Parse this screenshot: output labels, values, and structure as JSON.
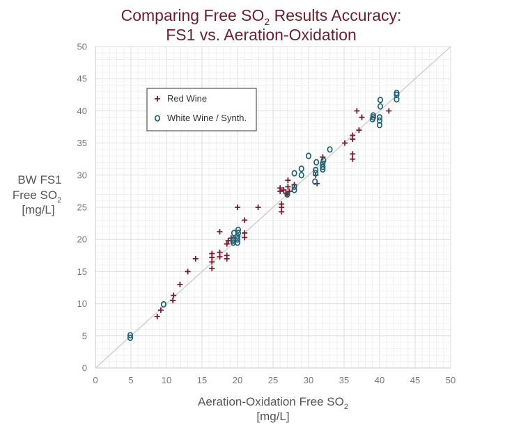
{
  "chart_data": {
    "type": "scatter",
    "title_line1": "Comparing Free SO",
    "title_sub": "2",
    "title_line1_end": " Results Accuracy:",
    "title_line2": "FS1 vs. Aeration-Oxidation",
    "xlabel_line1": "Aeration-Oxidation Free SO",
    "xlabel_sub": "2",
    "xlabel_line2": "[mg/L]",
    "ylabel_line1": "BW FS1",
    "ylabel_line2": "Free SO",
    "ylabel_sub": "2",
    "ylabel_line3": "[mg/L]",
    "xlim": [
      0,
      50
    ],
    "ylim": [
      0,
      50
    ],
    "xticks": [
      "0",
      "5",
      "10",
      "15",
      "20",
      "25",
      "30",
      "35",
      "40",
      "45",
      "50"
    ],
    "yticks": [
      "0",
      "5",
      "10",
      "15",
      "20",
      "25",
      "30",
      "35",
      "40",
      "45",
      "50"
    ],
    "grid": true,
    "reference_line": "y = x",
    "legend_position": "top-left",
    "colors": {
      "red": "#7a1a2c",
      "white": "#1f6073",
      "grid": "#e8e8e8",
      "ref": "#d0d0d0",
      "title": "#6b1e2e"
    },
    "series": [
      {
        "name": "Red Wine",
        "marker": "plus",
        "points": [
          [
            8.7,
            8.0
          ],
          [
            9.2,
            9.0
          ],
          [
            10.9,
            10.5
          ],
          [
            11.0,
            11.3
          ],
          [
            11.9,
            13.0
          ],
          [
            13.0,
            15.0
          ],
          [
            14.1,
            17.0
          ],
          [
            16.4,
            15.5
          ],
          [
            16.4,
            16.5
          ],
          [
            16.4,
            17.2
          ],
          [
            16.4,
            17.8
          ],
          [
            17.5,
            17.3
          ],
          [
            17.5,
            18.0
          ],
          [
            17.5,
            21.2
          ],
          [
            18.5,
            17.0
          ],
          [
            18.5,
            17.5
          ],
          [
            18.5,
            19.3
          ],
          [
            18.7,
            19.8
          ],
          [
            19.1,
            20.2
          ],
          [
            20.0,
            25.0
          ],
          [
            21.0,
            20.3
          ],
          [
            21.0,
            21.0
          ],
          [
            21.0,
            23.0
          ],
          [
            22.9,
            25.0
          ],
          [
            26.0,
            27.5
          ],
          [
            26.0,
            28.0
          ],
          [
            26.2,
            24.3
          ],
          [
            26.2,
            25.0
          ],
          [
            26.2,
            25.5
          ],
          [
            26.5,
            27.7
          ],
          [
            26.8,
            27.2
          ],
          [
            27.0,
            27.0
          ],
          [
            27.1,
            28.2
          ],
          [
            27.1,
            29.2
          ],
          [
            27.3,
            27.5
          ],
          [
            28.0,
            28.5
          ],
          [
            31.0,
            30.0
          ],
          [
            31.2,
            28.7
          ],
          [
            32.0,
            32.8
          ],
          [
            35.1,
            35.0
          ],
          [
            36.2,
            32.5
          ],
          [
            36.2,
            33.3
          ],
          [
            36.2,
            35.6
          ],
          [
            36.2,
            36.2
          ],
          [
            36.8,
            40.0
          ],
          [
            37.1,
            37.0
          ],
          [
            37.5,
            39.0
          ],
          [
            41.3,
            40.0
          ]
        ]
      },
      {
        "name": "White Wine / Synth.",
        "marker": "circle",
        "points": [
          [
            4.9,
            4.7
          ],
          [
            4.9,
            5.1
          ],
          [
            9.6,
            9.9
          ],
          [
            19.4,
            19.5
          ],
          [
            19.4,
            19.8
          ],
          [
            19.4,
            20.0
          ],
          [
            19.5,
            21.0
          ],
          [
            20.0,
            19.5
          ],
          [
            20.0,
            20.0
          ],
          [
            20.0,
            20.5
          ],
          [
            20.1,
            21.0
          ],
          [
            20.1,
            21.5
          ],
          [
            27.0,
            27.0
          ],
          [
            28.0,
            27.7
          ],
          [
            28.0,
            28.2
          ],
          [
            28.0,
            30.3
          ],
          [
            29.0,
            30.0
          ],
          [
            29.0,
            31.0
          ],
          [
            30.0,
            33.0
          ],
          [
            30.9,
            29.0
          ],
          [
            31.0,
            30.3
          ],
          [
            31.0,
            30.8
          ],
          [
            31.1,
            32.0
          ],
          [
            32.0,
            30.9
          ],
          [
            32.0,
            31.3
          ],
          [
            32.0,
            31.8
          ],
          [
            32.1,
            32.3
          ],
          [
            33.0,
            34.0
          ],
          [
            39.0,
            38.7
          ],
          [
            39.1,
            39.0
          ],
          [
            39.1,
            39.3
          ],
          [
            40.0,
            37.8
          ],
          [
            40.0,
            38.5
          ],
          [
            40.0,
            39.0
          ],
          [
            40.1,
            40.7
          ],
          [
            40.1,
            41.7
          ],
          [
            42.4,
            41.8
          ],
          [
            42.4,
            42.5
          ],
          [
            42.4,
            42.8
          ]
        ]
      }
    ]
  }
}
